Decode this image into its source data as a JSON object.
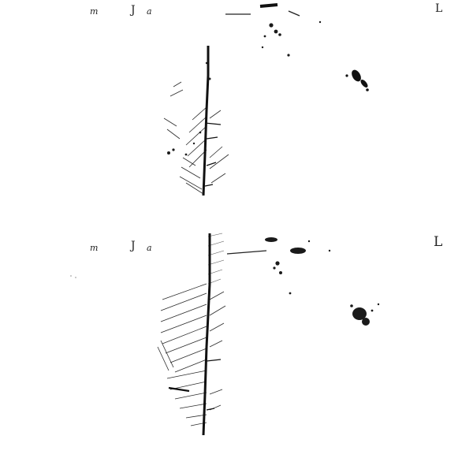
{
  "plates": [
    {
      "glyphs": {
        "left_a": "m",
        "left_b": "J",
        "left_c": "a",
        "right": "L"
      }
    },
    {
      "glyphs": {
        "left_a": "m",
        "left_b": "J",
        "left_c": "a",
        "right": "L"
      }
    }
  ],
  "colors": {
    "ink": "#1a1a1a",
    "paper": "#ffffff"
  }
}
